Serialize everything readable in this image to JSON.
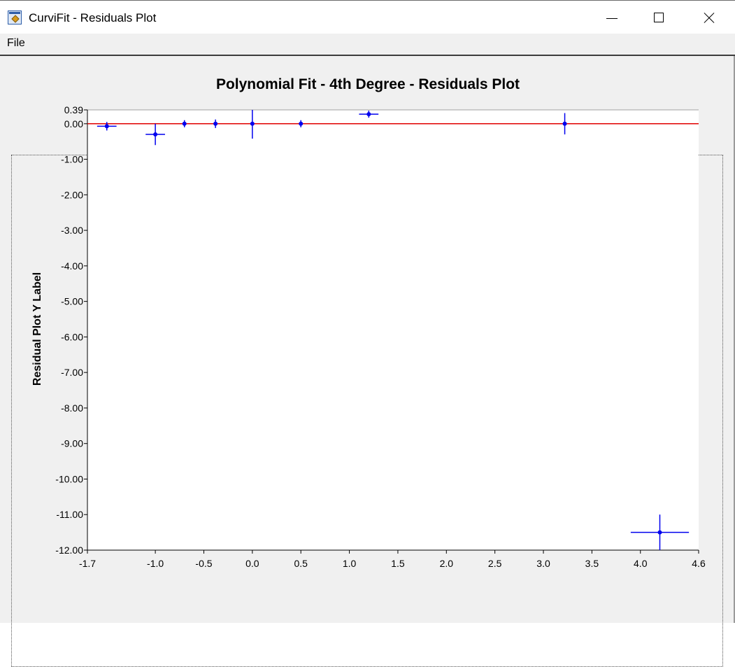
{
  "window": {
    "title": "CurviFit - Residuals Plot",
    "icon": "app-icon",
    "controls": [
      "minimize-icon",
      "maximize-icon",
      "close-icon"
    ]
  },
  "menu": {
    "file_label": "File"
  },
  "colors": {
    "points": "#0000ee",
    "zero_line": "#e00000",
    "plot_background": "#ffffff",
    "window_background": "#f0f0f0"
  },
  "chart_data": {
    "type": "scatter",
    "title": "Polynomial Fit - 4th Degree - Residuals Plot",
    "xlabel": "",
    "ylabel": "Residual Plot Y Label",
    "xlim": [
      -1.7,
      4.6
    ],
    "ylim": [
      -12.0,
      0.39
    ],
    "x_ticks": [
      -1.7,
      -1.0,
      -0.5,
      0.0,
      0.5,
      1.0,
      1.5,
      2.0,
      2.5,
      3.0,
      3.5,
      4.0,
      4.6
    ],
    "x_tick_labels": [
      "-1.7",
      "-1.0",
      "-0.5",
      "0.0",
      "0.5",
      "1.0",
      "1.5",
      "2.0",
      "2.5",
      "3.0",
      "3.5",
      "4.0",
      "4.6"
    ],
    "y_ticks": [
      0.39,
      0.0,
      -1.0,
      -2.0,
      -3.0,
      -4.0,
      -5.0,
      -6.0,
      -7.0,
      -8.0,
      -9.0,
      -10.0,
      -11.0,
      -12.0
    ],
    "y_tick_labels": [
      "0.39",
      "0.00",
      "-1.00",
      "-2.00",
      "-3.00",
      "-4.00",
      "-5.00",
      "-6.00",
      "-7.00",
      "-8.00",
      "-9.00",
      "-10.00",
      "-11.00",
      "-12.00"
    ],
    "reference_line_y": 0.0,
    "grid": false,
    "legend": "none",
    "points": [
      {
        "x": -1.5,
        "y": -0.07,
        "xerr": 0.1,
        "yerr": 0.12
      },
      {
        "x": -1.0,
        "y": -0.3,
        "xerr": 0.1,
        "yerr": 0.3
      },
      {
        "x": -0.7,
        "y": 0.0,
        "xerr": 0.0,
        "yerr": 0.1
      },
      {
        "x": -0.38,
        "y": 0.0,
        "xerr": 0.0,
        "yerr": 0.12
      },
      {
        "x": 0.0,
        "y": 0.0,
        "xerr": 0.0,
        "yerr": 0.42
      },
      {
        "x": 0.5,
        "y": 0.0,
        "xerr": 0.0,
        "yerr": 0.1
      },
      {
        "x": 1.2,
        "y": 0.27,
        "xerr": 0.1,
        "yerr": 0.1
      },
      {
        "x": 3.22,
        "y": 0.0,
        "xerr": 0.0,
        "yerr": 0.3
      },
      {
        "x": 4.2,
        "y": -11.5,
        "xerr": 0.3,
        "yerr": 0.5
      }
    ]
  }
}
